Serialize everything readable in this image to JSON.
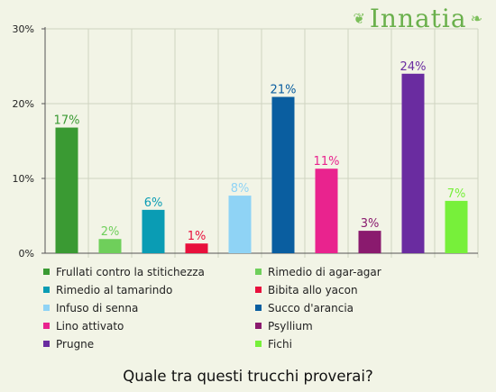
{
  "logo": {
    "text": "Innatia"
  },
  "question": "Quale tra questi trucchi proverai?",
  "chart_data": {
    "type": "bar",
    "title": "",
    "xlabel": "",
    "ylabel": "",
    "ylim": [
      0,
      30
    ],
    "y_ticks": [
      "0%",
      "10%",
      "20%",
      "30%"
    ],
    "y_tick_values": [
      0,
      10,
      20,
      30
    ],
    "grid": true,
    "legend_position": "bottom",
    "categories": [
      "Frullati contro la stitichezza",
      "Rimedio di agar-agar",
      "Rimedio al tamarindo",
      "Bibita allo yacon",
      "Infuso di senna",
      "Succo d'arancia",
      "Lino attivato",
      "Psyllium",
      "Prugne",
      "Fichi"
    ],
    "values": [
      17,
      2,
      6,
      1,
      8,
      21,
      11,
      3,
      24,
      7
    ],
    "bar_heights": [
      16.8,
      1.9,
      5.8,
      1.3,
      7.7,
      20.9,
      11.3,
      3.0,
      24.0,
      7.0
    ],
    "data_labels": [
      "17%",
      "2%",
      "6%",
      "1%",
      "8%",
      "21%",
      "11%",
      "3%",
      "24%",
      "7%"
    ],
    "colors": [
      "#3a9a33",
      "#6fcf5b",
      "#0a9cb4",
      "#e8103c",
      "#8fd3f5",
      "#0a5ea0",
      "#e9238e",
      "#8a1a6e",
      "#6a2ca0",
      "#77f03a"
    ]
  }
}
